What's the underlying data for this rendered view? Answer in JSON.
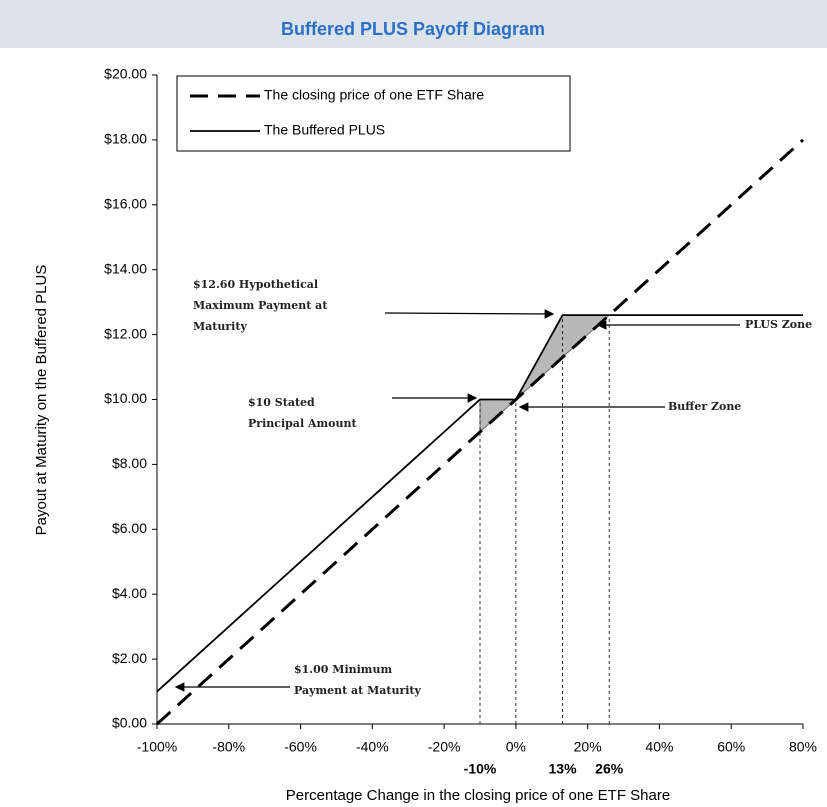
{
  "header": {
    "title": "Buffered PLUS Payoff Diagram"
  },
  "chart_data": {
    "type": "line",
    "xlabel": "Percentage Change in the closing price of one ETF Share",
    "ylabel": "Payout at Maturity on the Buffered PLUS",
    "xlim": [
      -100,
      80
    ],
    "ylim": [
      0,
      20
    ],
    "xticks": [
      {
        "value": -100,
        "label": "-100%"
      },
      {
        "value": -80,
        "label": "-80%"
      },
      {
        "value": -60,
        "label": "-60%"
      },
      {
        "value": -40,
        "label": "-40%"
      },
      {
        "value": -20,
        "label": "-20%"
      },
      {
        "value": 0,
        "label": "0%"
      },
      {
        "value": 20,
        "label": "20%"
      },
      {
        "value": 40,
        "label": "40%"
      },
      {
        "value": 60,
        "label": "60%"
      },
      {
        "value": 80,
        "label": "80%"
      }
    ],
    "yticks": [
      {
        "value": 0,
        "label": "$0.00"
      },
      {
        "value": 2,
        "label": "$2.00"
      },
      {
        "value": 4,
        "label": "$4.00"
      },
      {
        "value": 6,
        "label": "$6.00"
      },
      {
        "value": 8,
        "label": "$8.00"
      },
      {
        "value": 10,
        "label": "$10.00"
      },
      {
        "value": 12,
        "label": "$12.00"
      },
      {
        "value": 14,
        "label": "$14.00"
      },
      {
        "value": 16,
        "label": "$16.00"
      },
      {
        "value": 18,
        "label": "$18.00"
      },
      {
        "value": 20,
        "label": "$20.00"
      }
    ],
    "series": [
      {
        "name": "The closing price of one ETF Share",
        "color": "#000000",
        "dash": true,
        "x": [
          -100,
          80
        ],
        "values": [
          0,
          18
        ]
      },
      {
        "name": "The Buffered PLUS",
        "color": "#000000",
        "dash": false,
        "x": [
          -100,
          -10,
          0,
          13,
          80
        ],
        "values": [
          1,
          10,
          10,
          12.6,
          12.6
        ]
      }
    ],
    "marker_labels": [
      {
        "value": -10,
        "label": "-10%"
      },
      {
        "value": 13,
        "label": "13%"
      },
      {
        "value": 26,
        "label": "26%"
      }
    ],
    "annotations": [
      {
        "lines": [
          "$12.60 Hypothetical",
          "Maximum Payment at",
          "Maturity"
        ]
      },
      {
        "lines": [
          "$10 Stated",
          "Principal Amount"
        ]
      },
      {
        "lines": [
          "$1.00 Minimum",
          "Payment at Maturity"
        ]
      },
      {
        "lines": [
          "PLUS Zone"
        ]
      },
      {
        "lines": [
          "Buffer Zone"
        ]
      }
    ],
    "legend": "upper left"
  }
}
